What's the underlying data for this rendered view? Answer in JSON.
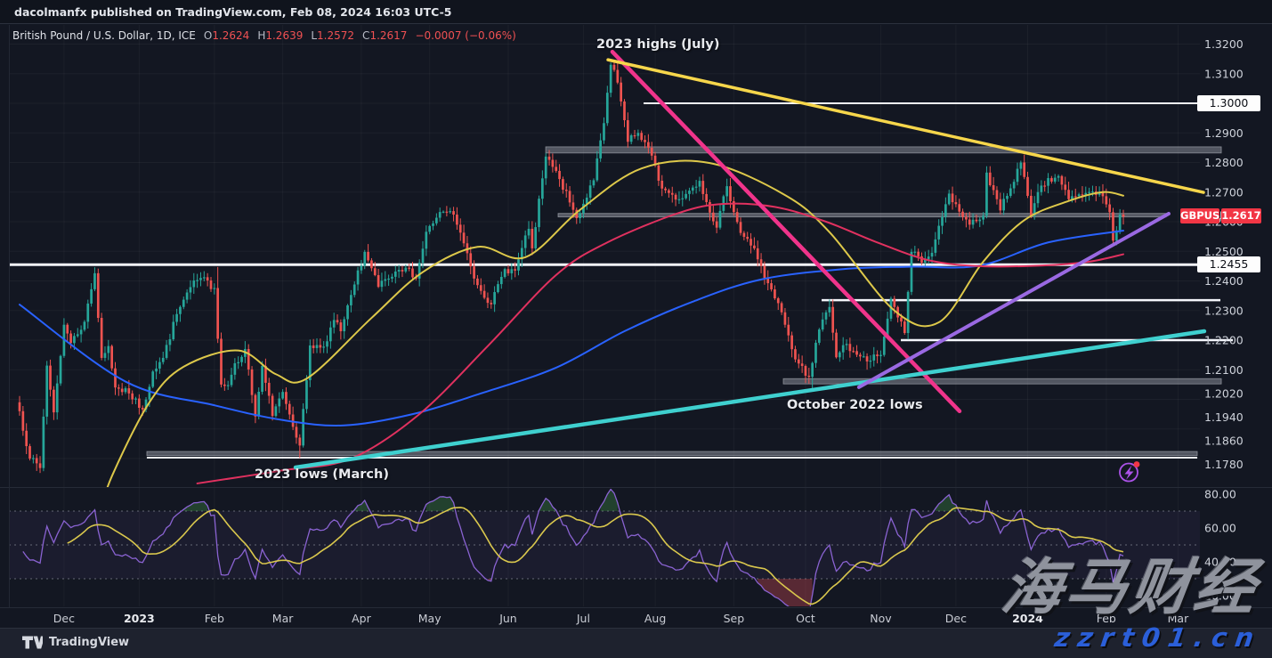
{
  "attribution": "dacolmanfx published on TradingView.com, Feb 08, 2024 16:03 UTC-5",
  "legend": {
    "symbol": "British Pound / U.S. Dollar, 1D, ICE",
    "o_label": "O",
    "o": "1.2624",
    "h_label": "H",
    "h": "1.2639",
    "l_label": "L",
    "l": "1.2572",
    "c_label": "C",
    "c": "1.2617",
    "change": "−0.0007 (−0.06%)"
  },
  "annotations": {
    "july_highs": "2023 highs (July)",
    "october_lows": "October 2022 lows",
    "march_lows": "2023 lows (March)"
  },
  "price_label": {
    "symbol": "GBPUSD",
    "price": "1.2617"
  },
  "axis_badges": {
    "upper": "1.3000",
    "mid": "1.2455"
  },
  "watermark": {
    "line1": "海马财经",
    "line2": "zzrt01.cn"
  },
  "footer": {
    "brand": "TradingView"
  },
  "colors": {
    "background": "#131722",
    "up": "#26a69a",
    "down": "#ef5350",
    "accent_red": "#f23645",
    "white_line": "#f4f6fb",
    "band_gray": "#8a8f9a",
    "axis_text": "#ced2da"
  },
  "chart_data": {
    "type": "candlestick+rsi",
    "title": "British Pound / U.S. Dollar, 1D, ICE",
    "symbol": "GBPUSD",
    "timeframe": "1D",
    "price_range_approx": [
      1.172,
      1.328
    ],
    "price_ticks": [
      "1.3200",
      "1.3100",
      "1.2900",
      "1.2800",
      "1.2700",
      "1.2600",
      "1.2500",
      "1.2400",
      "1.2300",
      "1.2200",
      "1.2100",
      "1.2020",
      "1.1940",
      "1.1860",
      "1.1780"
    ],
    "rsi_ticks": [
      "80.00",
      "60.00",
      "40.00",
      "20.00"
    ],
    "rsi_levels": [
      70,
      50,
      30
    ],
    "time_axis": [
      {
        "label": "Dec",
        "d": "2022-12-01"
      },
      {
        "label": "2023",
        "d": "2023-01-02",
        "bold": true
      },
      {
        "label": "Feb",
        "d": "2023-02-01"
      },
      {
        "label": "Mar",
        "d": "2023-03-01"
      },
      {
        "label": "Apr",
        "d": "2023-04-03"
      },
      {
        "label": "May",
        "d": "2023-05-01"
      },
      {
        "label": "Jun",
        "d": "2023-06-01"
      },
      {
        "label": "Jul",
        "d": "2023-07-03"
      },
      {
        "label": "Aug",
        "d": "2023-08-01"
      },
      {
        "label": "Sep",
        "d": "2023-09-01"
      },
      {
        "label": "Oct",
        "d": "2023-10-02"
      },
      {
        "label": "Nov",
        "d": "2023-11-01"
      },
      {
        "label": "Dec",
        "d": "2023-12-01"
      },
      {
        "label": "2024",
        "d": "2024-01-01",
        "bold": true
      },
      {
        "label": "Feb",
        "d": "2024-02-01"
      },
      {
        "label": "Mar",
        "d": "2024-03-01"
      }
    ],
    "candles": {
      "start": "2022-11-14",
      "end": "2024-02-08",
      "first_open": 1.199,
      "anchors": [
        [
          "2022-11-14",
          1.196
        ],
        [
          "2022-11-17",
          1.18
        ],
        [
          "2022-11-22",
          1.1768
        ],
        [
          "2022-11-24",
          1.2114
        ],
        [
          "2022-11-28",
          1.1956
        ],
        [
          "2022-12-01",
          1.2252
        ],
        [
          "2022-12-05",
          1.219
        ],
        [
          "2022-12-09",
          1.2262
        ],
        [
          "2022-12-14",
          1.2426
        ],
        [
          "2022-12-16",
          1.214
        ],
        [
          "2022-12-20",
          1.218
        ],
        [
          "2022-12-22",
          1.204
        ],
        [
          "2022-12-28",
          1.202
        ],
        [
          "2023-01-03",
          1.1966
        ],
        [
          "2023-01-06",
          1.2094
        ],
        [
          "2023-01-11",
          1.214
        ],
        [
          "2023-01-17",
          1.2288
        ],
        [
          "2023-01-23",
          1.2379
        ],
        [
          "2023-01-26",
          1.241
        ],
        [
          "2023-02-01",
          1.2376
        ],
        [
          "2023-02-03",
          1.205
        ],
        [
          "2023-02-07",
          1.2048
        ],
        [
          "2023-02-09",
          1.2122
        ],
        [
          "2023-02-14",
          1.217
        ],
        [
          "2023-02-17",
          1.1942
        ],
        [
          "2023-02-21",
          1.2113
        ],
        [
          "2023-02-24",
          1.1944
        ],
        [
          "2023-03-01",
          1.2025
        ],
        [
          "2023-03-08",
          1.1844
        ],
        [
          "2023-03-13",
          1.2182
        ],
        [
          "2023-03-17",
          1.2178
        ],
        [
          "2023-03-22",
          1.2268
        ],
        [
          "2023-03-24",
          1.223
        ],
        [
          "2023-03-30",
          1.2388
        ],
        [
          "2023-04-04",
          1.2498
        ],
        [
          "2023-04-10",
          1.238
        ],
        [
          "2023-04-14",
          1.2414
        ],
        [
          "2023-04-21",
          1.2442
        ],
        [
          "2023-04-25",
          1.2408
        ],
        [
          "2023-04-28",
          1.2566
        ],
        [
          "2023-05-05",
          1.2634
        ],
        [
          "2023-05-10",
          1.2624
        ],
        [
          "2023-05-15",
          1.2527
        ],
        [
          "2023-05-18",
          1.2408
        ],
        [
          "2023-05-25",
          1.2321
        ],
        [
          "2023-05-31",
          1.244
        ],
        [
          "2023-06-05",
          1.2435
        ],
        [
          "2023-06-09",
          1.2576
        ],
        [
          "2023-06-12",
          1.251
        ],
        [
          "2023-06-16",
          1.282
        ],
        [
          "2023-06-22",
          1.2744
        ],
        [
          "2023-06-29",
          1.2612
        ],
        [
          "2023-07-06",
          1.274
        ],
        [
          "2023-07-11",
          1.2933
        ],
        [
          "2023-07-13",
          1.313
        ],
        [
          "2023-07-17",
          1.307
        ],
        [
          "2023-07-20",
          1.287
        ],
        [
          "2023-07-25",
          1.29
        ],
        [
          "2023-07-28",
          1.285
        ],
        [
          "2023-08-03",
          1.2712
        ],
        [
          "2023-08-10",
          1.2676
        ],
        [
          "2023-08-15",
          1.2705
        ],
        [
          "2023-08-18",
          1.2738
        ],
        [
          "2023-08-25",
          1.258
        ],
        [
          "2023-08-30",
          1.272
        ],
        [
          "2023-09-05",
          1.2562
        ],
        [
          "2023-09-11",
          1.251
        ],
        [
          "2023-09-14",
          1.241
        ],
        [
          "2023-09-21",
          1.2294
        ],
        [
          "2023-09-27",
          1.2135
        ],
        [
          "2023-10-03",
          1.2076
        ],
        [
          "2023-10-06",
          1.2236
        ],
        [
          "2023-10-11",
          1.2312
        ],
        [
          "2023-10-13",
          1.2142
        ],
        [
          "2023-10-17",
          1.2183
        ],
        [
          "2023-10-20",
          1.2163
        ],
        [
          "2023-10-26",
          1.2128
        ],
        [
          "2023-11-01",
          1.215
        ],
        [
          "2023-11-06",
          1.234
        ],
        [
          "2023-11-10",
          1.2224
        ],
        [
          "2023-11-14",
          1.2498
        ],
        [
          "2023-11-17",
          1.2462
        ],
        [
          "2023-11-22",
          1.2495
        ],
        [
          "2023-11-29",
          1.2695
        ],
        [
          "2023-12-04",
          1.2634
        ],
        [
          "2023-12-07",
          1.259
        ],
        [
          "2023-12-13",
          1.262
        ],
        [
          "2023-12-14",
          1.2766
        ],
        [
          "2023-12-20",
          1.2638
        ],
        [
          "2023-12-28",
          1.28
        ],
        [
          "2024-01-02",
          1.262
        ],
        [
          "2024-01-05",
          1.2722
        ],
        [
          "2024-01-12",
          1.2754
        ],
        [
          "2024-01-17",
          1.2676
        ],
        [
          "2024-01-23",
          1.269
        ],
        [
          "2024-01-26",
          1.2702
        ],
        [
          "2024-01-31",
          1.2686
        ],
        [
          "2024-02-02",
          1.2632
        ],
        [
          "2024-02-05",
          1.2536
        ],
        [
          "2024-02-07",
          1.2624
        ],
        [
          "2024-02-08",
          1.2617
        ]
      ],
      "extremes": [
        [
          "2022-12-14",
          "hi",
          1.2446
        ],
        [
          "2023-02-02",
          "hi",
          1.2447
        ],
        [
          "2023-03-08",
          "lo",
          1.1802
        ],
        [
          "2023-07-14",
          "hi",
          1.3142
        ],
        [
          "2023-10-04",
          "lo",
          1.2037
        ],
        [
          "2024-02-05",
          "lo",
          1.2518
        ]
      ]
    },
    "overlays": [
      {
        "name": "ma-blue",
        "color": "#2962ff",
        "width": 2,
        "points": [
          [
            "2022-11-14",
            1.232
          ],
          [
            "2022-12-27",
            1.206
          ],
          [
            "2023-02-01",
            1.198
          ],
          [
            "2023-03-01",
            1.193
          ],
          [
            "2023-03-27",
            1.1912
          ],
          [
            "2023-04-24",
            1.195
          ],
          [
            "2023-05-22",
            1.202
          ],
          [
            "2023-06-21",
            1.2107
          ],
          [
            "2023-07-19",
            1.223
          ],
          [
            "2023-08-16",
            1.233
          ],
          [
            "2023-09-13",
            1.2405
          ],
          [
            "2023-10-17",
            1.244
          ],
          [
            "2023-11-14",
            1.2448
          ],
          [
            "2023-12-12",
            1.2452
          ],
          [
            "2024-01-09",
            1.253
          ],
          [
            "2024-02-08",
            1.257
          ]
        ]
      },
      {
        "name": "ma-yellow",
        "color": "#ddc84a",
        "width": 2,
        "points": [
          [
            "2022-12-15",
            1.16
          ],
          [
            "2022-12-21",
            1.174
          ],
          [
            "2023-01-05",
            1.199
          ],
          [
            "2023-01-19",
            1.211
          ],
          [
            "2023-02-10",
            1.2165
          ],
          [
            "2023-02-27",
            1.2085
          ],
          [
            "2023-03-10",
            1.207
          ],
          [
            "2023-04-06",
            1.2275
          ],
          [
            "2023-04-27",
            1.243
          ],
          [
            "2023-05-19",
            1.2515
          ],
          [
            "2023-06-08",
            1.248
          ],
          [
            "2023-06-30",
            1.264
          ],
          [
            "2023-07-26",
            1.278
          ],
          [
            "2023-08-23",
            1.2798
          ],
          [
            "2023-09-22",
            1.269
          ],
          [
            "2023-10-11",
            1.2565
          ],
          [
            "2023-11-07",
            1.23
          ],
          [
            "2023-11-24",
            1.226
          ],
          [
            "2023-12-13",
            1.2465
          ],
          [
            "2023-12-29",
            1.2605
          ],
          [
            "2024-01-17",
            1.267
          ],
          [
            "2024-01-31",
            1.27
          ],
          [
            "2024-02-08",
            1.2688
          ]
        ]
      },
      {
        "name": "ma-crimson",
        "color": "#e0315f",
        "width": 2,
        "points": [
          [
            "2023-01-25",
            1.1716
          ],
          [
            "2023-03-01",
            1.176
          ],
          [
            "2023-03-29",
            1.18
          ],
          [
            "2023-04-26",
            1.195
          ],
          [
            "2023-05-24",
            1.218
          ],
          [
            "2023-06-21",
            1.242
          ],
          [
            "2023-07-12",
            1.253
          ],
          [
            "2023-08-10",
            1.263
          ],
          [
            "2023-08-29",
            1.266
          ],
          [
            "2023-09-19",
            1.265
          ],
          [
            "2023-10-10",
            1.26
          ],
          [
            "2023-10-31",
            1.253
          ],
          [
            "2023-11-21",
            1.247
          ],
          [
            "2023-12-12",
            1.245
          ],
          [
            "2024-01-05",
            1.2452
          ],
          [
            "2024-01-25",
            1.2465
          ],
          [
            "2024-02-08",
            1.249
          ]
        ]
      }
    ],
    "trendlines": [
      {
        "name": "steep-decline-from-july-high",
        "color": "#f0348b",
        "width": 4.5,
        "t1": 0.5067,
        "p1": 1.3174,
        "t2": 0.7982,
        "p2": 1.196
      },
      {
        "name": "descending-resistance",
        "color": "#f6d64b",
        "width": 3.5,
        "t1": 0.503,
        "p1": 1.3147,
        "t2": 1.003,
        "p2": 1.2699
      },
      {
        "name": "rising-support-from-march-lows",
        "color": "#3fd0cf",
        "width": 4.5,
        "t1": 0.2407,
        "p1": 1.177,
        "t2": 1.0037,
        "p2": 1.223
      },
      {
        "name": "short-term-uptrend",
        "color": "#9a69e2",
        "width": 4,
        "t1": 0.7137,
        "p1": 1.2041,
        "t2": 0.9738,
        "p2": 1.2627
      }
    ],
    "hlines": [
      {
        "price": 1.3,
        "t1": 0.5329,
        "t2": 1.003,
        "width": 2
      },
      {
        "price": 1.2455,
        "t1": -0.0075,
        "t2": 1.0,
        "width": 3
      },
      {
        "price": 1.2335,
        "t1": 0.6824,
        "t2": 1.0172,
        "width": 2.5
      },
      {
        "price": 1.22,
        "t1": 0.7489,
        "t2": 1.0277,
        "width": 2.5
      },
      {
        "price": 1.1803,
        "t1": 0.1158,
        "t2": 0.9978,
        "width": 2
      }
    ],
    "bands": [
      {
        "p_top": 1.2853,
        "p_bot": 1.2832,
        "t1": 0.4507,
        "t2": 1.018,
        "thin": false
      },
      {
        "p_top": 1.2628,
        "p_bot": 1.2616,
        "t1": 0.4611,
        "t2": 0.9716,
        "thin": true
      },
      {
        "p_top": 1.207,
        "p_bot": 1.2052,
        "t1": 0.6502,
        "t2": 1.018,
        "thin": false
      },
      {
        "p_top": 1.1824,
        "p_bot": 1.181,
        "t1": 0.1158,
        "t2": 0.9978,
        "thin": false
      }
    ],
    "rsi": {
      "period": 14,
      "smoothing": 14,
      "line_color": "#8a63d2",
      "ma_color": "#d9c74d"
    }
  }
}
